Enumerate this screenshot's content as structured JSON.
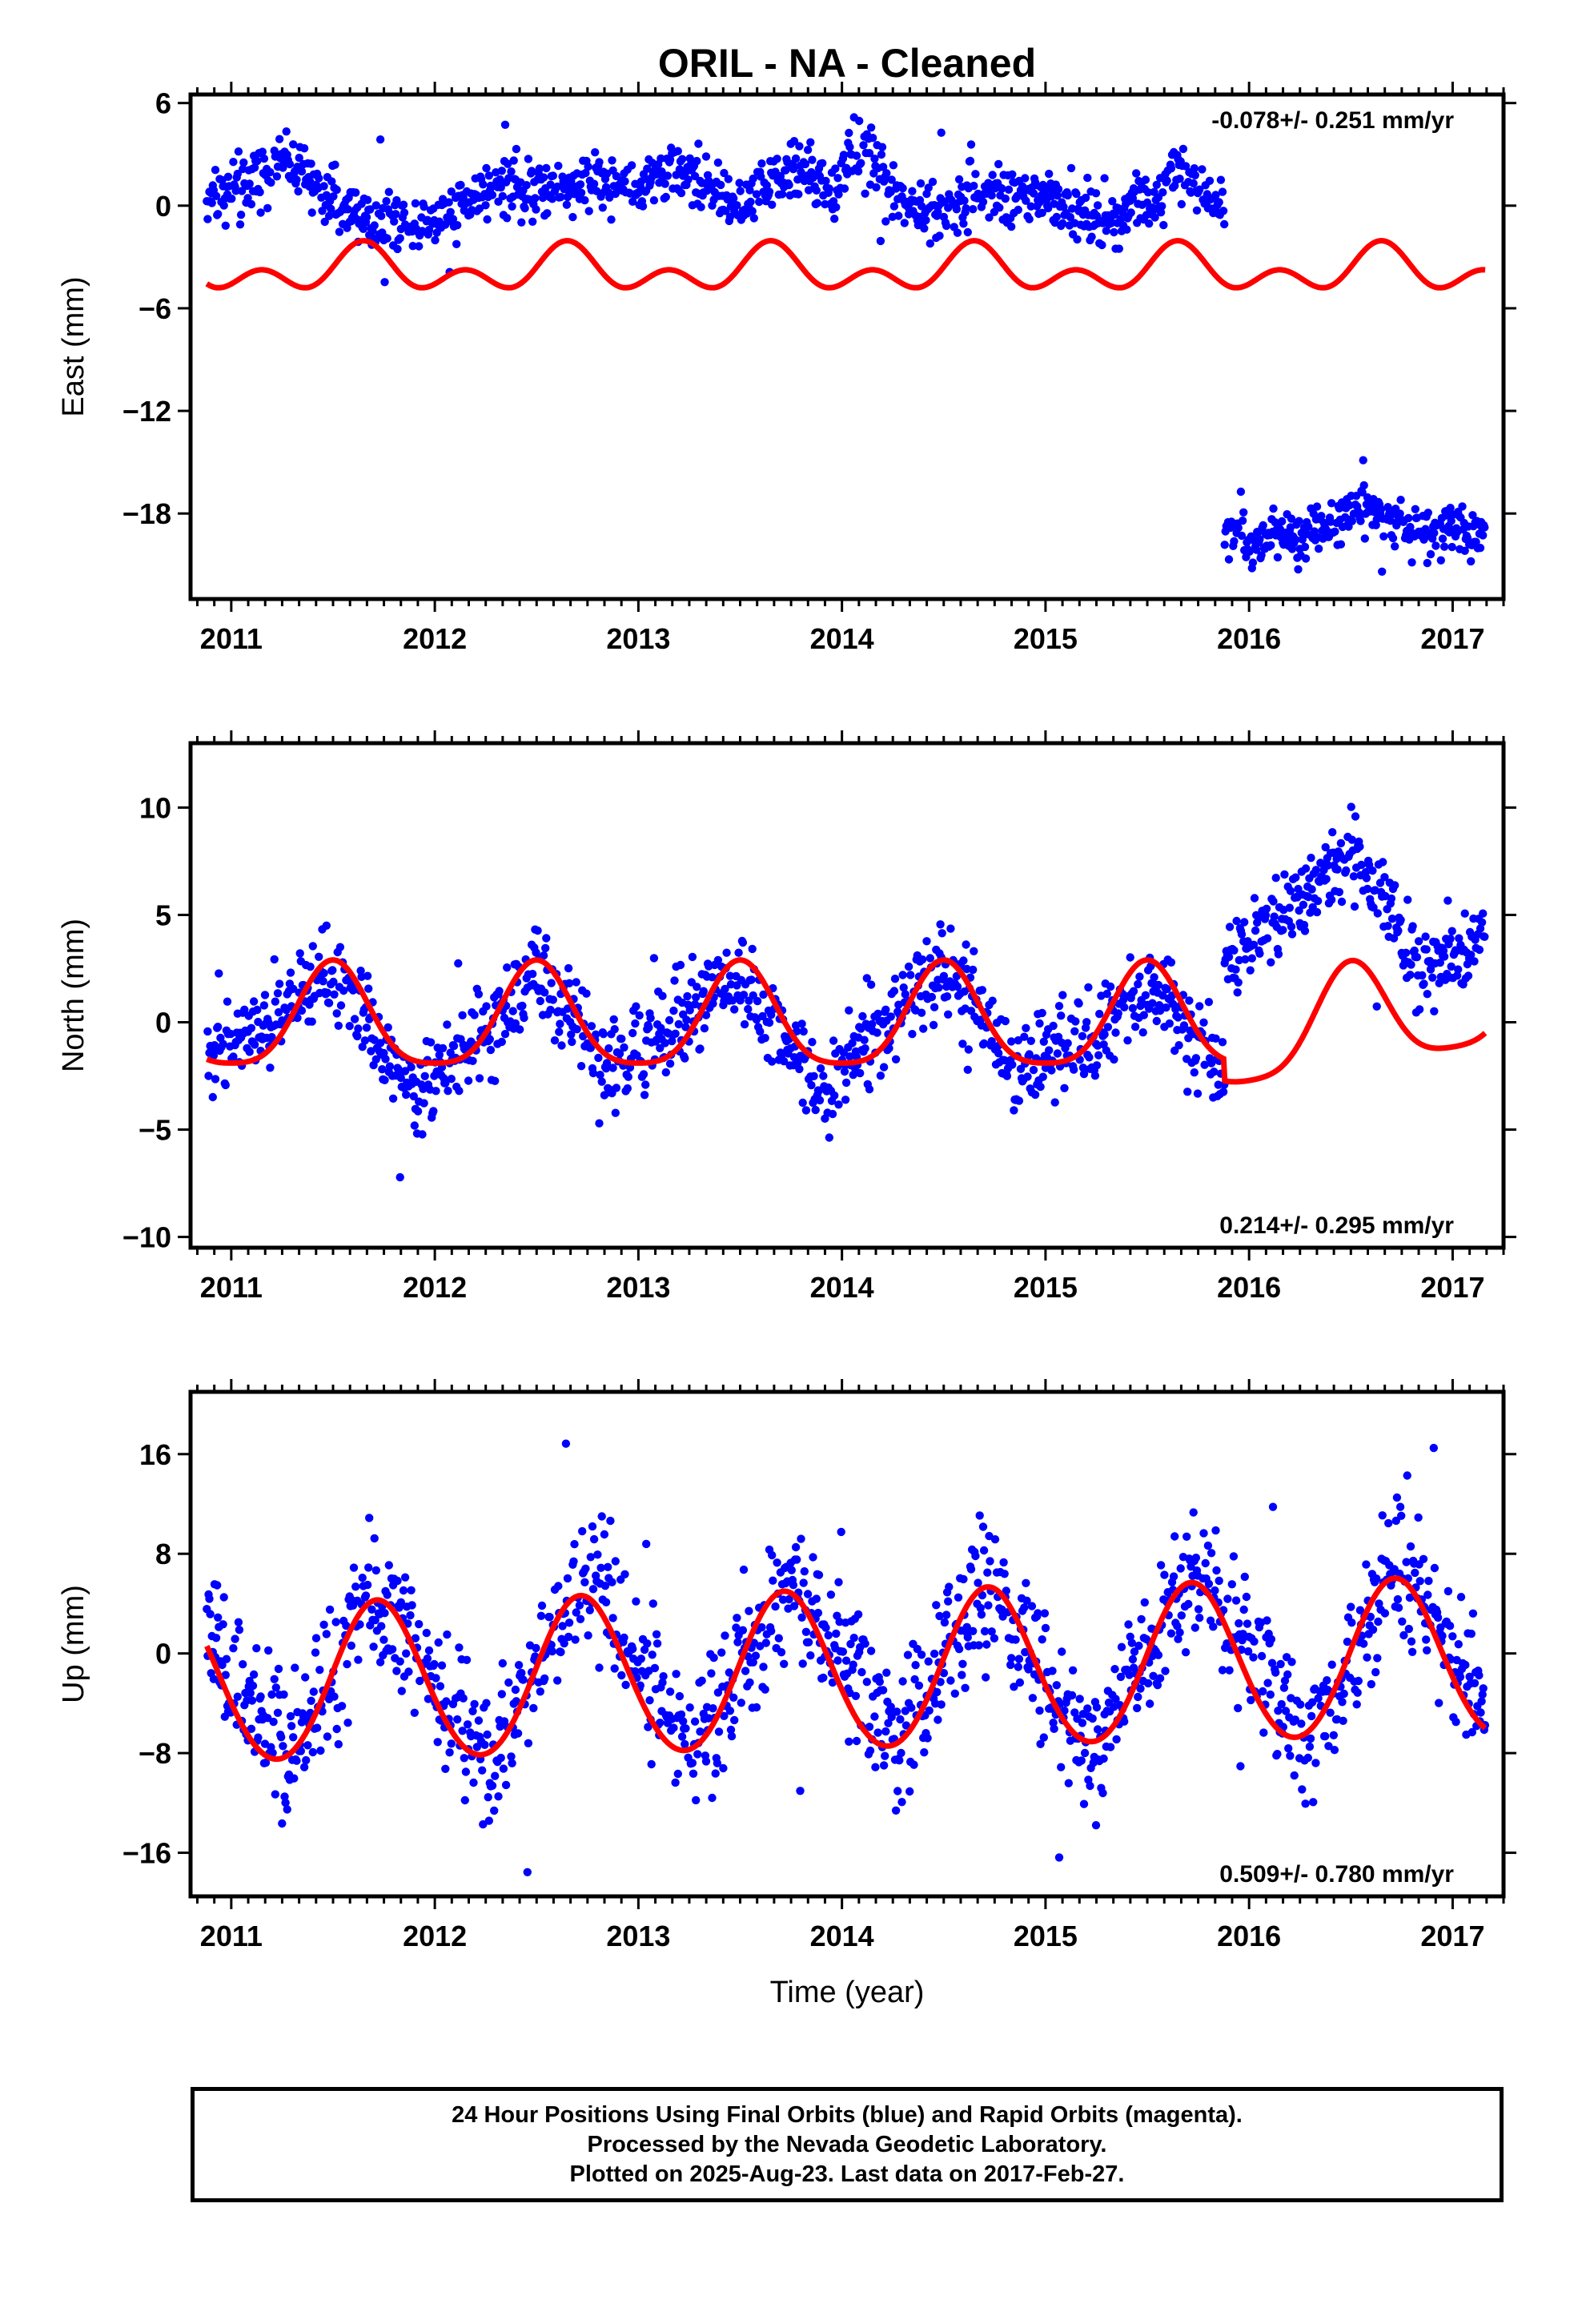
{
  "figure_title": "ORIL  - NA - Cleaned",
  "footer": {
    "line1": "24 Hour Positions Using Final Orbits (blue) and Rapid Orbits (magenta).",
    "line2": "Processed by the Nevada Geodetic Laboratory.",
    "line3": "Plotted on 2025-Aug-23. Last data on 2017-Feb-27."
  },
  "colors": {
    "final_orbits": "#0000ff",
    "model": "#ff0000",
    "frame": "#000000"
  },
  "chart_data": [
    {
      "type": "scatter",
      "name": "east",
      "title": "",
      "xlabel": "",
      "ylabel": "East (mm)",
      "xlim": [
        2010.8,
        2017.25
      ],
      "ylim": [
        -23,
        6.5
      ],
      "xticks": [
        2011,
        2012,
        2013,
        2014,
        2015,
        2016,
        2017
      ],
      "yticks": [
        6,
        0,
        -6,
        -12,
        -18
      ],
      "rate_label": "-0.078+/- 0.251 mm/yr",
      "rate_position": "top-right",
      "data_span": [
        2010.88,
        2017.16
      ],
      "observed_series": [
        {
          "segment": [
            2010.88,
            2015.88
          ],
          "mean": [
            [
              2010.88,
              0.6
            ],
            [
              2011.05,
              1.0
            ],
            [
              2011.25,
              2.8
            ],
            [
              2011.5,
              0.4
            ],
            [
              2011.7,
              -1.0
            ],
            [
              2012.0,
              -0.8
            ],
            [
              2012.3,
              1.2
            ],
            [
              2012.6,
              1.0
            ],
            [
              2012.8,
              1.6
            ],
            [
              2013.0,
              1.2
            ],
            [
              2013.2,
              2.4
            ],
            [
              2013.45,
              0.0
            ],
            [
              2013.6,
              1.2
            ],
            [
              2013.8,
              2.2
            ],
            [
              2013.95,
              0.6
            ],
            [
              2014.1,
              3.4
            ],
            [
              2014.3,
              0.0
            ],
            [
              2014.55,
              -0.4
            ],
            [
              2014.7,
              1.0
            ],
            [
              2015.0,
              0.4
            ],
            [
              2015.3,
              -0.8
            ],
            [
              2015.55,
              0.6
            ],
            [
              2015.65,
              2.2
            ],
            [
              2015.88,
              0.0
            ]
          ],
          "spread": 1.0
        },
        {
          "segment": [
            2015.88,
            2017.16
          ],
          "mean": [
            [
              2015.88,
              -19.0
            ],
            [
              2016.0,
              -19.8
            ],
            [
              2016.3,
              -19.2
            ],
            [
              2016.55,
              -17.5
            ],
            [
              2016.75,
              -18.6
            ],
            [
              2016.95,
              -19.6
            ],
            [
              2017.16,
              -19.0
            ]
          ],
          "spread": 0.9
        }
      ],
      "model_series": {
        "name": "",
        "offset": -3.8,
        "step_at": null,
        "annual_amp": 0.85,
        "annual_phase_peak": 0.65,
        "semiannual_amp": 0.9,
        "semiannual_phase_peak": 0.15
      }
    },
    {
      "type": "scatter",
      "name": "north",
      "title": "",
      "xlabel": "",
      "ylabel": "North (mm)",
      "xlim": [
        2010.8,
        2017.25
      ],
      "ylim": [
        -10.5,
        13
      ],
      "xticks": [
        2011,
        2012,
        2013,
        2014,
        2015,
        2016,
        2017
      ],
      "yticks": [
        10,
        5,
        0,
        -5,
        -10
      ],
      "rate_label": "0.214+/- 0.295 mm/yr",
      "rate_position": "bottom-right",
      "data_span": [
        2010.88,
        2017.16
      ],
      "observed_series": [
        {
          "segment": [
            2010.88,
            2015.88
          ],
          "mean": [
            [
              2010.88,
              -1.8
            ],
            [
              2011.25,
              0.5
            ],
            [
              2011.5,
              2.5
            ],
            [
              2011.9,
              -3.5
            ],
            [
              2012.2,
              -1.0
            ],
            [
              2012.5,
              2.5
            ],
            [
              2012.85,
              -2.2
            ],
            [
              2013.2,
              0.2
            ],
            [
              2013.5,
              2.0
            ],
            [
              2013.9,
              -2.8
            ],
            [
              2014.2,
              -0.5
            ],
            [
              2014.5,
              2.8
            ],
            [
              2014.85,
              -2.3
            ],
            [
              2015.2,
              -1.0
            ],
            [
              2015.5,
              2.0
            ],
            [
              2015.88,
              -2.5
            ]
          ],
          "spread": 1.2
        },
        {
          "segment": [
            2015.88,
            2017.16
          ],
          "mean": [
            [
              2015.9,
              3.0
            ],
            [
              2016.1,
              4.5
            ],
            [
              2016.5,
              8.0
            ],
            [
              2016.85,
              2.3
            ],
            [
              2017.16,
              4.5
            ]
          ],
          "spread": 1.1
        }
      ],
      "model_series": {
        "name": "",
        "offset": 0.0,
        "step_at": null,
        "annual_amp": 2.4,
        "annual_phase_peak": 0.5,
        "semiannual_amp": 0.5,
        "semiannual_phase_peak": 0.0,
        "trend_after": [
          2015.88,
          2017.16,
          -1.0,
          1.0
        ]
      }
    },
    {
      "type": "scatter",
      "name": "up",
      "title": "",
      "xlabel": "Time (year)",
      "ylabel": "Up (mm)",
      "xlim": [
        2010.8,
        2017.25
      ],
      "ylim": [
        -19.5,
        21
      ],
      "xticks": [
        2011,
        2012,
        2013,
        2014,
        2015,
        2016,
        2017
      ],
      "yticks": [
        16,
        8,
        0,
        -8,
        -16
      ],
      "rate_label": "0.509+/- 0.780 mm/yr",
      "rate_position": "bottom-right",
      "data_span": [
        2010.88,
        2017.16
      ],
      "observed_series": [
        {
          "segment": [
            2010.88,
            2017.16
          ],
          "mean": [
            [
              2010.88,
              2.0
            ],
            [
              2011.27,
              -9.0
            ],
            [
              2011.7,
              5.0
            ],
            [
              2012.27,
              -8.5
            ],
            [
              2012.75,
              6.5
            ],
            [
              2013.27,
              -8.0
            ],
            [
              2013.75,
              5.5
            ],
            [
              2014.27,
              -7.5
            ],
            [
              2014.72,
              6.0
            ],
            [
              2015.2,
              -8.0
            ],
            [
              2015.75,
              6.5
            ],
            [
              2016.27,
              -7.0
            ],
            [
              2016.75,
              6.5
            ],
            [
              2017.16,
              -3.0
            ]
          ],
          "spread": 3.2
        }
      ],
      "model_series": {
        "name": "",
        "offset": -1.5,
        "step_at": null,
        "annual_amp": 6.3,
        "annual_phase_peak": 0.72,
        "semiannual_amp": 0.3,
        "semiannual_phase_peak": 0.2,
        "trend": 0.35
      }
    }
  ]
}
